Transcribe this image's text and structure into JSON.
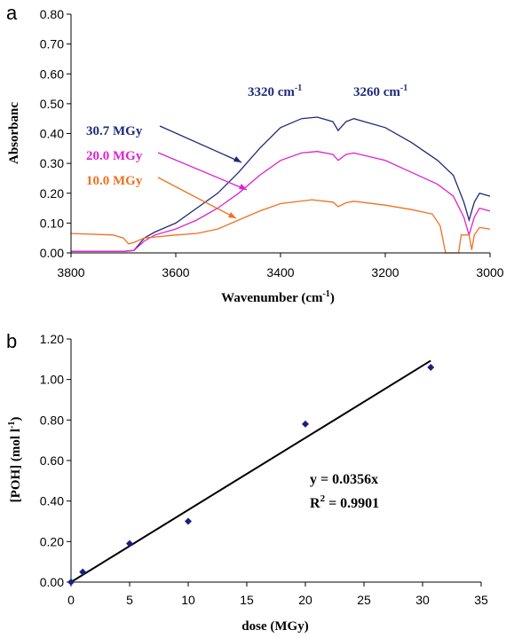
{
  "chart_data": [
    {
      "panel": "a",
      "type": "line",
      "xlabel": "Wavenumber (cm-1)",
      "xlabel_main": "Wavenumber (cm",
      "xlabel_sup": "-1",
      "xlabel_end": ")",
      "ylabel": "Absorbanc",
      "xlim": [
        3800,
        3000
      ],
      "ylim": [
        0,
        0.8
      ],
      "x_ticks": [
        "3800",
        "3600",
        "3400",
        "3200",
        "3000"
      ],
      "y_ticks": [
        "0.00",
        "0.10",
        "0.20",
        "0.30",
        "0.40",
        "0.50",
        "0.60",
        "0.70",
        "0.80"
      ],
      "grid": false,
      "annotations": [
        {
          "main": "3320 cm",
          "sup": "-1"
        },
        {
          "main": "3260 cm",
          "sup": "-1"
        }
      ],
      "series": [
        {
          "name": "30.7 MGy",
          "color": "#1f2a7a",
          "points": [
            [
              3800,
              0.005
            ],
            [
              3700,
              0.005
            ],
            [
              3680,
              0.008
            ],
            [
              3660,
              0.05
            ],
            [
              3640,
              0.07
            ],
            [
              3600,
              0.1
            ],
            [
              3560,
              0.15
            ],
            [
              3520,
              0.2
            ],
            [
              3480,
              0.27
            ],
            [
              3440,
              0.35
            ],
            [
              3400,
              0.42
            ],
            [
              3360,
              0.45
            ],
            [
              3330,
              0.455
            ],
            [
              3300,
              0.44
            ],
            [
              3290,
              0.41
            ],
            [
              3275,
              0.44
            ],
            [
              3260,
              0.45
            ],
            [
              3200,
              0.42
            ],
            [
              3150,
              0.37
            ],
            [
              3100,
              0.31
            ],
            [
              3070,
              0.26
            ],
            [
              3050,
              0.17
            ],
            [
              3040,
              0.11
            ],
            [
              3030,
              0.17
            ],
            [
              3020,
              0.2
            ],
            [
              3000,
              0.19
            ]
          ]
        },
        {
          "name": "20.0 MGy",
          "color": "#e020d0",
          "points": [
            [
              3800,
              0.005
            ],
            [
              3700,
              0.005
            ],
            [
              3680,
              0.008
            ],
            [
              3660,
              0.04
            ],
            [
              3640,
              0.06
            ],
            [
              3600,
              0.08
            ],
            [
              3560,
              0.11
            ],
            [
              3520,
              0.15
            ],
            [
              3480,
              0.2
            ],
            [
              3440,
              0.26
            ],
            [
              3400,
              0.31
            ],
            [
              3360,
              0.335
            ],
            [
              3330,
              0.34
            ],
            [
              3300,
              0.33
            ],
            [
              3290,
              0.31
            ],
            [
              3275,
              0.33
            ],
            [
              3260,
              0.335
            ],
            [
              3200,
              0.31
            ],
            [
              3150,
              0.27
            ],
            [
              3100,
              0.23
            ],
            [
              3070,
              0.19
            ],
            [
              3050,
              0.12
            ],
            [
              3040,
              0.06
            ],
            [
              3030,
              0.12
            ],
            [
              3020,
              0.15
            ],
            [
              3000,
              0.14
            ]
          ]
        },
        {
          "name": "10.0 MGy",
          "color": "#f07020",
          "points": [
            [
              3800,
              0.065
            ],
            [
              3720,
              0.06
            ],
            [
              3700,
              0.05
            ],
            [
              3690,
              0.03
            ],
            [
              3680,
              0.035
            ],
            [
              3660,
              0.05
            ],
            [
              3600,
              0.06
            ],
            [
              3560,
              0.065
            ],
            [
              3520,
              0.08
            ],
            [
              3480,
              0.11
            ],
            [
              3440,
              0.14
            ],
            [
              3400,
              0.165
            ],
            [
              3340,
              0.178
            ],
            [
              3300,
              0.17
            ],
            [
              3290,
              0.155
            ],
            [
              3275,
              0.168
            ],
            [
              3260,
              0.173
            ],
            [
              3200,
              0.16
            ],
            [
              3150,
              0.145
            ],
            [
              3110,
              0.13
            ],
            [
              3095,
              0.09
            ],
            [
              3085,
              0.0
            ],
            [
              3060,
              0.0
            ],
            [
              3055,
              0.06
            ],
            [
              3040,
              0.06
            ],
            [
              3035,
              0.01
            ],
            [
              3030,
              0.06
            ],
            [
              3020,
              0.085
            ],
            [
              3000,
              0.08
            ]
          ]
        }
      ]
    },
    {
      "panel": "b",
      "type": "scatter",
      "xlabel": "dose (MGy)",
      "ylabel": "[POH] (mol l-1)",
      "ylabel_main": "[POH] (mol l",
      "ylabel_sup": "-1",
      "ylabel_end": ")",
      "xlim": [
        0,
        35
      ],
      "ylim": [
        0,
        1.2
      ],
      "x_ticks": [
        "0",
        "5",
        "10",
        "15",
        "20",
        "25",
        "30",
        "35"
      ],
      "y_ticks": [
        "0.00",
        "0.20",
        "0.40",
        "0.60",
        "0.80",
        "1.00",
        "1.20"
      ],
      "grid": false,
      "points": [
        [
          0,
          0.0
        ],
        [
          1,
          0.05
        ],
        [
          5,
          0.19
        ],
        [
          10,
          0.3
        ],
        [
          20,
          0.78
        ],
        [
          30.7,
          1.06
        ]
      ],
      "marker_color": "#1a2080",
      "trendline": {
        "slope": 0.0356,
        "x_range": [
          0,
          30.7
        ],
        "color": "#000000"
      },
      "equation": "y = 0.0356x",
      "r2_main": "R",
      "r2_sup": "2",
      "r2_rest": " = 0.9901"
    }
  ],
  "panel_labels": [
    "a",
    "b"
  ]
}
